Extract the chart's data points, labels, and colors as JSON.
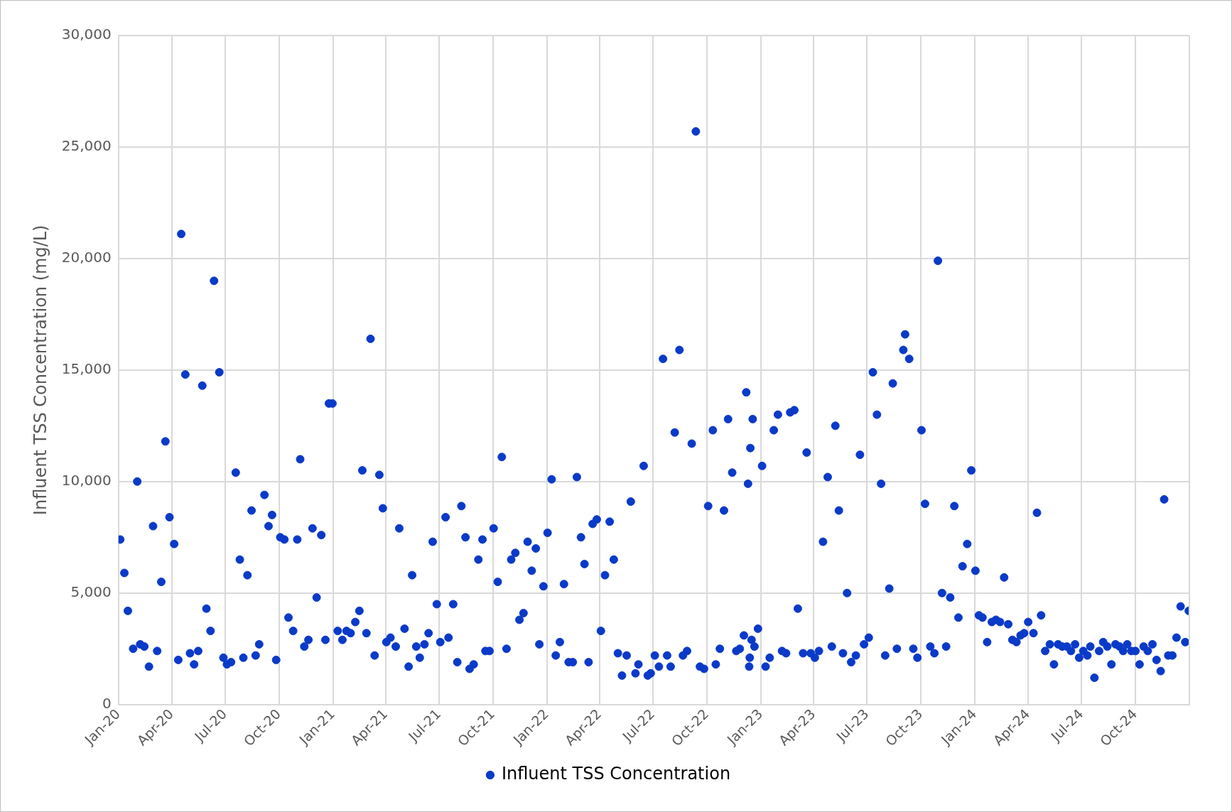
{
  "chart_data": {
    "type": "scatter",
    "ylabel": "Influent TSS Concentration (mg/L)",
    "xlim": [
      "2020-01-01",
      "2025-01-01"
    ],
    "xticks": [
      {
        "value": "2020-01-01",
        "label": "Jan-20"
      },
      {
        "value": "2020-04-01",
        "label": "Apr-20"
      },
      {
        "value": "2020-07-01",
        "label": "Jul-20"
      },
      {
        "value": "2020-10-01",
        "label": "Oct-20"
      },
      {
        "value": "2021-01-01",
        "label": "Jan-21"
      },
      {
        "value": "2021-04-01",
        "label": "Apr-21"
      },
      {
        "value": "2021-07-01",
        "label": "Jul-21"
      },
      {
        "value": "2021-10-01",
        "label": "Oct-21"
      },
      {
        "value": "2022-01-01",
        "label": "Jan-22"
      },
      {
        "value": "2022-04-01",
        "label": "Apr-22"
      },
      {
        "value": "2022-07-01",
        "label": "Jul-22"
      },
      {
        "value": "2022-10-01",
        "label": "Oct-22"
      },
      {
        "value": "2023-01-01",
        "label": "Jan-23"
      },
      {
        "value": "2023-04-01",
        "label": "Apr-23"
      },
      {
        "value": "2023-07-01",
        "label": "Jul-23"
      },
      {
        "value": "2023-10-01",
        "label": "Oct-23"
      },
      {
        "value": "2024-01-01",
        "label": "Jan-24"
      },
      {
        "value": "2024-04-01",
        "label": "Apr-24"
      },
      {
        "value": "2024-07-01",
        "label": "Jul-24"
      },
      {
        "value": "2024-10-01",
        "label": "Oct-24"
      }
    ],
    "ylim": [
      0,
      30000
    ],
    "yticks": [
      {
        "value": 0,
        "label": "0"
      },
      {
        "value": 5000,
        "label": "5,000"
      },
      {
        "value": 10000,
        "label": "10,000"
      },
      {
        "value": 15000,
        "label": "15,000"
      },
      {
        "value": 20000,
        "label": "20,000"
      },
      {
        "value": 25000,
        "label": "25,000"
      },
      {
        "value": 30000,
        "label": "30,000"
      }
    ],
    "grid": true,
    "legend": "bottom",
    "marker": "circle",
    "series": [
      {
        "name": "Influent TSS Concentration",
        "color": "#0a3ac8",
        "x": [
          "2020-01-04",
          "2020-01-11",
          "2020-01-17",
          "2020-01-26",
          "2020-02-02",
          "2020-02-07",
          "2020-02-14",
          "2020-02-22",
          "2020-02-29",
          "2020-03-07",
          "2020-03-14",
          "2020-03-21",
          "2020-03-28",
          "2020-04-05",
          "2020-04-12",
          "2020-04-17",
          "2020-04-24",
          "2020-05-02",
          "2020-05-09",
          "2020-05-16",
          "2020-05-23",
          "2020-05-30",
          "2020-06-06",
          "2020-06-12",
          "2020-06-21",
          "2020-06-28",
          "2020-07-04",
          "2020-07-11",
          "2020-07-19",
          "2020-07-26",
          "2020-08-01",
          "2020-08-08",
          "2020-08-15",
          "2020-08-22",
          "2020-08-28",
          "2020-09-06",
          "2020-09-13",
          "2020-09-19",
          "2020-09-26",
          "2020-10-03",
          "2020-10-10",
          "2020-10-17",
          "2020-10-25",
          "2020-11-01",
          "2020-11-06",
          "2020-11-13",
          "2020-11-20",
          "2020-11-27",
          "2020-12-04",
          "2020-12-12",
          "2020-12-19",
          "2020-12-25",
          "2020-12-31",
          "2021-01-09",
          "2021-01-17",
          "2021-01-24",
          "2021-01-31",
          "2021-02-08",
          "2021-02-15",
          "2021-02-20",
          "2021-02-27",
          "2021-03-06",
          "2021-03-13",
          "2021-03-21",
          "2021-03-27",
          "2021-04-02",
          "2021-04-09",
          "2021-04-18",
          "2021-04-24",
          "2021-05-03",
          "2021-05-10",
          "2021-05-16",
          "2021-05-23",
          "2021-05-29",
          "2021-06-06",
          "2021-06-13",
          "2021-06-20",
          "2021-06-27",
          "2021-07-03",
          "2021-07-12",
          "2021-07-17",
          "2021-07-25",
          "2021-08-01",
          "2021-08-08",
          "2021-08-15",
          "2021-08-22",
          "2021-08-29",
          "2021-09-06",
          "2021-09-13",
          "2021-09-18",
          "2021-09-25",
          "2021-10-02",
          "2021-10-09",
          "2021-10-16",
          "2021-10-24",
          "2021-11-01",
          "2021-11-08",
          "2021-11-15",
          "2021-11-22",
          "2021-11-29",
          "2021-12-06",
          "2021-12-13",
          "2021-12-19",
          "2021-12-26",
          "2022-01-02",
          "2022-01-09",
          "2022-01-16",
          "2022-01-23",
          "2022-01-30",
          "2022-02-07",
          "2022-02-14",
          "2022-02-21",
          "2022-02-28",
          "2022-03-06",
          "2022-03-13",
          "2022-03-20",
          "2022-03-27",
          "2022-04-03",
          "2022-04-10",
          "2022-04-18",
          "2022-04-25",
          "2022-05-02",
          "2022-05-09",
          "2022-05-17",
          "2022-05-24",
          "2022-06-01",
          "2022-06-06",
          "2022-06-15",
          "2022-06-22",
          "2022-06-27",
          "2022-07-04",
          "2022-07-11",
          "2022-07-18",
          "2022-07-25",
          "2022-07-31",
          "2022-08-07",
          "2022-08-15",
          "2022-08-21",
          "2022-08-28",
          "2022-09-05",
          "2022-09-12",
          "2022-09-19",
          "2022-09-26",
          "2022-10-03",
          "2022-10-11",
          "2022-10-16",
          "2022-10-23",
          "2022-10-30",
          "2022-11-06",
          "2022-11-13",
          "2022-11-20",
          "2022-11-26",
          "2022-12-03",
          "2022-12-07",
          "2022-12-10",
          "2022-12-12",
          "2022-12-13",
          "2022-12-14",
          "2022-12-16",
          "2022-12-18",
          "2022-12-21",
          "2022-12-27",
          "2023-01-03",
          "2023-01-09",
          "2023-01-16",
          "2023-01-23",
          "2023-01-30",
          "2023-02-06",
          "2023-02-13",
          "2023-02-20",
          "2023-02-27",
          "2023-03-05",
          "2023-03-14",
          "2023-03-20",
          "2023-03-27",
          "2023-04-03",
          "2023-04-10",
          "2023-04-17",
          "2023-04-25",
          "2023-05-02",
          "2023-05-08",
          "2023-05-14",
          "2023-05-21",
          "2023-05-28",
          "2023-06-04",
          "2023-06-12",
          "2023-06-19",
          "2023-06-26",
          "2023-07-04",
          "2023-07-11",
          "2023-07-18",
          "2023-07-25",
          "2023-08-01",
          "2023-08-08",
          "2023-08-14",
          "2023-08-21",
          "2023-09-01",
          "2023-09-04",
          "2023-09-11",
          "2023-09-18",
          "2023-09-25",
          "2023-10-02",
          "2023-10-08",
          "2023-10-17",
          "2023-10-24",
          "2023-10-30",
          "2023-11-06",
          "2023-11-13",
          "2023-11-20",
          "2023-11-27",
          "2023-12-04",
          "2023-12-11",
          "2023-12-19",
          "2023-12-26",
          "2024-01-02",
          "2024-01-08",
          "2024-01-14",
          "2024-01-22",
          "2024-01-30",
          "2024-02-06",
          "2024-02-13",
          "2024-02-20",
          "2024-02-27",
          "2024-03-05",
          "2024-03-12",
          "2024-03-19",
          "2024-03-25",
          "2024-04-01",
          "2024-04-10",
          "2024-04-16",
          "2024-04-23",
          "2024-04-30",
          "2024-05-08",
          "2024-05-15",
          "2024-05-22",
          "2024-05-29",
          "2024-06-06",
          "2024-06-13",
          "2024-06-20",
          "2024-06-27",
          "2024-07-04",
          "2024-07-11",
          "2024-07-16",
          "2024-07-23",
          "2024-07-31",
          "2024-08-07",
          "2024-08-14",
          "2024-08-21",
          "2024-08-28",
          "2024-09-04",
          "2024-09-10",
          "2024-09-17",
          "2024-09-24",
          "2024-10-01",
          "2024-10-08",
          "2024-10-15",
          "2024-10-22",
          "2024-10-30",
          "2024-11-06",
          "2024-11-13",
          "2024-11-19",
          "2024-11-26",
          "2024-12-03",
          "2024-12-10",
          "2024-12-17",
          "2024-12-25",
          "2024-12-31"
        ],
        "values": [
          7400,
          5900,
          4200,
          2500,
          10000,
          2700,
          2600,
          1700,
          8000,
          2400,
          5500,
          11800,
          8400,
          7200,
          2000,
          21100,
          14800,
          2300,
          1800,
          2400,
          14300,
          4300,
          3300,
          19000,
          14900,
          2100,
          1800,
          1900,
          10400,
          6500,
          2100,
          5800,
          8700,
          2200,
          2700,
          9400,
          8000,
          8500,
          2000,
          7500,
          7400,
          3900,
          3300,
          7400,
          11000,
          2600,
          2900,
          7900,
          4800,
          7600,
          2900,
          13500,
          13500,
          3300,
          2900,
          3300,
          3200,
          3700,
          4200,
          10500,
          3200,
          16400,
          2200,
          10300,
          8800,
          2800,
          3000,
          2600,
          7900,
          3400,
          1700,
          5800,
          2600,
          2100,
          2700,
          3200,
          7300,
          4500,
          2800,
          8400,
          3000,
          4500,
          1900,
          8900,
          7500,
          1600,
          1800,
          6500,
          7400,
          2400,
          2400,
          7900,
          5500,
          11100,
          2500,
          6500,
          6800,
          3800,
          4100,
          7300,
          6000,
          7000,
          2700,
          5300,
          7700,
          10100,
          2200,
          2800,
          5400,
          1900,
          1900,
          10200,
          7500,
          6300,
          1900,
          8100,
          8300,
          3300,
          5800,
          8200,
          6500,
          2300,
          1300,
          2200,
          9100,
          1400,
          1800,
          10700,
          1300,
          1400,
          2200,
          1700,
          15500,
          2200,
          1700,
          12200,
          15900,
          2200,
          2400,
          11700,
          25700,
          1700,
          1600,
          8900,
          12300,
          1800,
          2500,
          8700,
          12800,
          10400,
          2400,
          2500,
          3100,
          14000,
          9900,
          1700,
          2100,
          11500,
          2900,
          12800,
          2600,
          3400,
          10700,
          1700,
          2100,
          12300,
          13000,
          2400,
          2300,
          13100,
          13200,
          4300,
          2300,
          11300,
          2300,
          2100,
          2400,
          7300,
          10200,
          2600,
          12500,
          8700,
          2300,
          5000,
          1900,
          2200,
          11200,
          2700,
          3000,
          14900,
          13000,
          9900,
          2200,
          5200,
          14400,
          2500,
          15900,
          16600,
          15500,
          2500,
          2100,
          12300,
          9000,
          2600,
          2300,
          19900,
          5000,
          2600,
          4800,
          8900,
          3900,
          6200,
          7200,
          10500,
          6000,
          4000,
          3900,
          2800,
          3700,
          3800,
          3700,
          5700,
          3600,
          2900,
          2800,
          3100,
          3200,
          3700,
          3200,
          8600,
          4000,
          2400,
          2700,
          1800,
          2700,
          2600,
          2600,
          2400,
          2700,
          2100,
          2400,
          2200,
          2600,
          1200,
          2400,
          2800,
          2600,
          1800,
          2700,
          2600,
          2400,
          2700,
          2400,
          2400,
          1800,
          2600,
          2400,
          2700,
          2000,
          1500,
          9200,
          2200,
          2200,
          3000,
          4400,
          2800,
          4200
        ]
      }
    ]
  }
}
